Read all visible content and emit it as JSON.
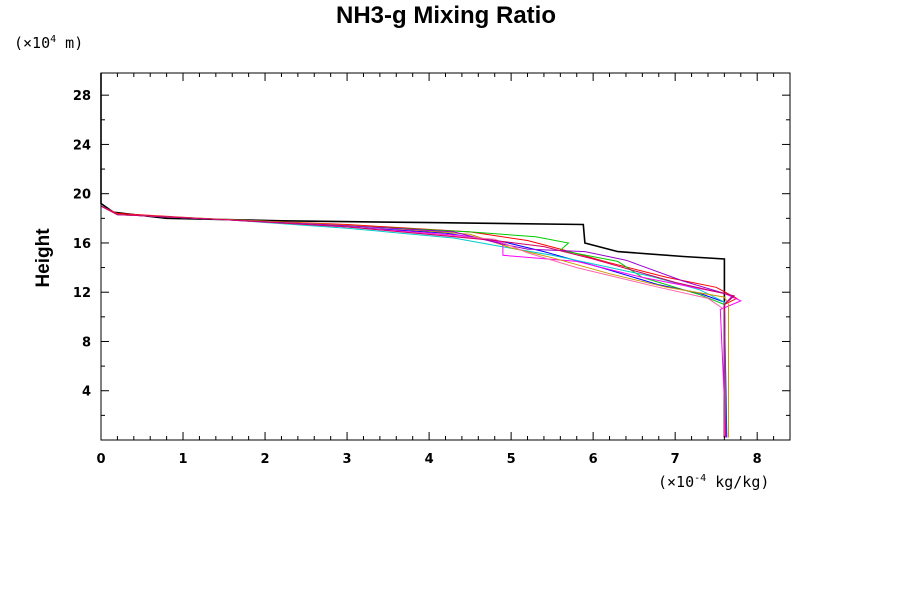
{
  "chart_data": {
    "type": "line",
    "title": "NH3-g Mixing Ratio",
    "ylabel": "Height",
    "xunit": {
      "prefix": "(×10",
      "exponent": "-4",
      "suffix": " kg/kg)"
    },
    "yunit": {
      "prefix": "(×10",
      "exponent": "4",
      "suffix": " m)"
    },
    "xlim": [
      0,
      8.4
    ],
    "ylim": [
      0,
      29.8
    ],
    "xticks": [
      "0",
      "1",
      "2",
      "3",
      "4",
      "5",
      "6",
      "7",
      "8"
    ],
    "yticks": [
      "4",
      "8",
      "12",
      "16",
      "20",
      "24",
      "28"
    ],
    "series": [
      {
        "color": "#000000",
        "points": [
          [
            0,
            29.8
          ],
          [
            0,
            19.2
          ],
          [
            0.15,
            18.5
          ],
          [
            0.8,
            18.0
          ],
          [
            2.2,
            17.8
          ],
          [
            4.0,
            17.65
          ],
          [
            5.88,
            17.5
          ],
          [
            5.9,
            16.0
          ],
          [
            6.3,
            15.3
          ],
          [
            7.1,
            14.9
          ],
          [
            7.6,
            14.7
          ],
          [
            7.6,
            0.2
          ]
        ]
      },
      {
        "color": "#ff0000",
        "points": [
          [
            0,
            19.0
          ],
          [
            0.2,
            18.4
          ],
          [
            1.5,
            17.9
          ],
          [
            3.0,
            17.5
          ],
          [
            4.5,
            16.9
          ],
          [
            5.2,
            16.2
          ],
          [
            5.6,
            15.5
          ],
          [
            6.2,
            14.4
          ],
          [
            6.9,
            13.2
          ],
          [
            7.5,
            12.4
          ],
          [
            7.75,
            11.5
          ],
          [
            7.6,
            11.0
          ],
          [
            7.62,
            0.2
          ]
        ]
      },
      {
        "color": "#00cc00",
        "points": [
          [
            0,
            19.0
          ],
          [
            0.2,
            18.3
          ],
          [
            1.5,
            17.9
          ],
          [
            3.0,
            17.4
          ],
          [
            4.5,
            16.9
          ],
          [
            5.3,
            16.5
          ],
          [
            5.7,
            16.0
          ],
          [
            5.6,
            15.4
          ],
          [
            6.3,
            14.5
          ],
          [
            6.6,
            13.2
          ],
          [
            7.3,
            11.8
          ],
          [
            7.6,
            11.0
          ],
          [
            7.62,
            0.2
          ]
        ]
      },
      {
        "color": "#0000ff",
        "points": [
          [
            0,
            19.0
          ],
          [
            0.2,
            18.3
          ],
          [
            1.5,
            17.9
          ],
          [
            3.0,
            17.3
          ],
          [
            4.2,
            16.8
          ],
          [
            4.9,
            16.1
          ],
          [
            5.4,
            15.3
          ],
          [
            6.1,
            14.0
          ],
          [
            6.8,
            12.6
          ],
          [
            7.3,
            11.9
          ],
          [
            7.6,
            11.2
          ],
          [
            7.63,
            0.2
          ]
        ]
      },
      {
        "color": "#00cccc",
        "points": [
          [
            0,
            19.0
          ],
          [
            0.2,
            18.3
          ],
          [
            1.5,
            17.9
          ],
          [
            3.0,
            17.2
          ],
          [
            4.3,
            16.4
          ],
          [
            4.8,
            15.8
          ],
          [
            5.5,
            15.0
          ],
          [
            6.0,
            14.3
          ],
          [
            6.7,
            13.3
          ],
          [
            7.3,
            12.2
          ],
          [
            7.6,
            11.2
          ],
          [
            7.62,
            0.2
          ]
        ]
      },
      {
        "color": "#ff00ff",
        "points": [
          [
            0,
            29.8
          ],
          [
            0,
            19.0
          ],
          [
            0.2,
            18.3
          ],
          [
            1.5,
            17.9
          ],
          [
            3.0,
            17.3
          ],
          [
            4.4,
            16.6
          ],
          [
            4.9,
            16.0
          ],
          [
            4.9,
            15.0
          ],
          [
            5.8,
            14.5
          ],
          [
            6.6,
            13.2
          ],
          [
            7.6,
            11.9
          ],
          [
            7.8,
            11.3
          ],
          [
            7.55,
            10.6
          ],
          [
            7.62,
            0.2
          ]
        ]
      },
      {
        "color": "#cc9900",
        "points": [
          [
            0,
            19.0
          ],
          [
            0.2,
            18.3
          ],
          [
            1.6,
            17.9
          ],
          [
            3.1,
            17.4
          ],
          [
            4.5,
            16.7
          ],
          [
            5.0,
            15.6
          ],
          [
            5.5,
            14.8
          ],
          [
            6.2,
            13.5
          ],
          [
            6.9,
            12.4
          ],
          [
            7.6,
            11.6
          ],
          [
            7.65,
            11.0
          ],
          [
            7.65,
            0.2
          ]
        ]
      },
      {
        "color": "#9900cc",
        "points": [
          [
            0,
            19.0
          ],
          [
            0.2,
            18.3
          ],
          [
            1.5,
            17.9
          ],
          [
            3.0,
            17.4
          ],
          [
            4.3,
            16.9
          ],
          [
            4.9,
            15.9
          ],
          [
            5.2,
            15.5
          ],
          [
            5.9,
            15.3
          ],
          [
            6.4,
            14.6
          ],
          [
            7.1,
            12.9
          ],
          [
            7.7,
            11.7
          ],
          [
            7.6,
            11.0
          ],
          [
            7.6,
            0.2
          ]
        ]
      },
      {
        "color": "#ff66aa",
        "points": [
          [
            0,
            19.0
          ],
          [
            0.2,
            18.3
          ],
          [
            1.5,
            17.9
          ],
          [
            3.0,
            17.3
          ],
          [
            4.4,
            16.5
          ],
          [
            4.8,
            16.3
          ],
          [
            5.2,
            15.2
          ],
          [
            5.8,
            14.0
          ],
          [
            6.8,
            12.4
          ],
          [
            7.4,
            11.5
          ],
          [
            7.6,
            10.6
          ],
          [
            7.6,
            0.2
          ]
        ]
      },
      {
        "color": "#cc0066",
        "points": [
          [
            0,
            19.0
          ],
          [
            0.2,
            18.3
          ],
          [
            1.5,
            17.9
          ],
          [
            3.0,
            17.3
          ],
          [
            4.8,
            16.2
          ],
          [
            5.4,
            15.7
          ],
          [
            6.0,
            14.7
          ],
          [
            7.0,
            12.8
          ],
          [
            7.72,
            11.7
          ],
          [
            7.6,
            11.0
          ],
          [
            7.61,
            0.2
          ]
        ]
      }
    ]
  }
}
